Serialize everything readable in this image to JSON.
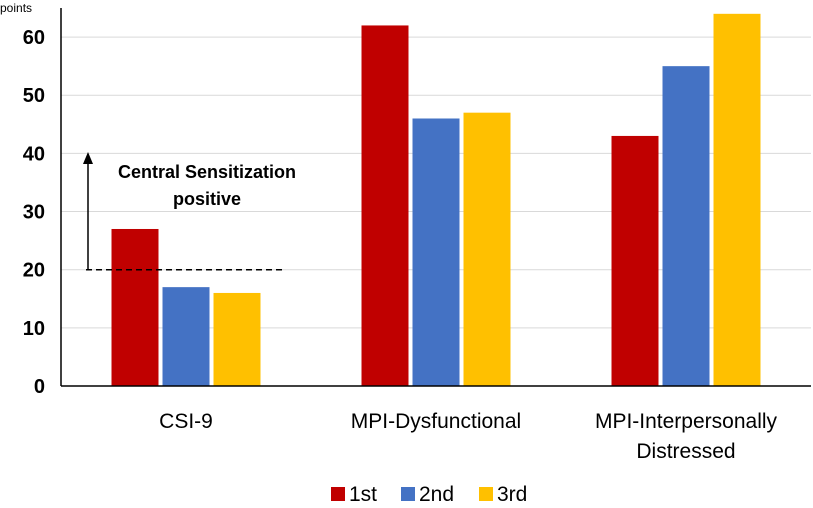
{
  "chart_data": {
    "type": "bar",
    "ylabel": "points",
    "ylim": [
      0,
      65
    ],
    "yticks": [
      0,
      10,
      20,
      30,
      40,
      50,
      60
    ],
    "grid": true,
    "categories": [
      [
        "CSI-9"
      ],
      [
        "MPI-Dysfunctional"
      ],
      [
        "MPI-Interpersonally",
        "Distressed"
      ]
    ],
    "series": [
      {
        "name": "1st",
        "color": "#C00000",
        "values": [
          27,
          62,
          43
        ]
      },
      {
        "name": "2nd",
        "color": "#4472C4",
        "values": [
          17,
          46,
          55
        ]
      },
      {
        "name": "3rd",
        "color": "#FFC000",
        "values": [
          16,
          47,
          64
        ]
      }
    ],
    "threshold": {
      "value": 20,
      "category": "CSI-9",
      "style": "dashed"
    },
    "annotation": {
      "lines": [
        "Central Sensitization",
        "positive"
      ],
      "arrow": "up from threshold"
    },
    "legend_position": "bottom-center"
  }
}
